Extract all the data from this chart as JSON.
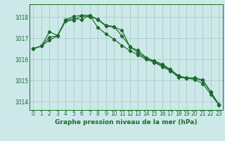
{
  "title": "Graphe pression niveau de la mer (hPa)",
  "background_color": "#cce8e8",
  "grid_color": "#aacccc",
  "line_color": "#1a6b2a",
  "xlim": [
    -0.5,
    23.5
  ],
  "ylim": [
    1013.6,
    1018.6
  ],
  "yticks": [
    1014,
    1015,
    1016,
    1017,
    1018
  ],
  "xticks": [
    0,
    1,
    2,
    3,
    4,
    5,
    6,
    7,
    8,
    9,
    10,
    11,
    12,
    13,
    14,
    15,
    16,
    17,
    18,
    19,
    20,
    21,
    22,
    23
  ],
  "series1": [
    1016.5,
    1016.62,
    1016.9,
    1017.1,
    1017.8,
    1017.85,
    1018.05,
    1018.0,
    1017.9,
    1017.6,
    1017.55,
    1017.1,
    1016.6,
    1016.3,
    1016.05,
    1015.9,
    1015.7,
    1015.5,
    1015.2,
    1015.1,
    1015.1,
    1015.0,
    1014.45,
    1013.85
  ],
  "series2": [
    1016.5,
    1016.62,
    1017.05,
    1017.1,
    1017.82,
    1017.93,
    1017.87,
    1018.08,
    1017.5,
    1017.2,
    1016.95,
    1016.65,
    1016.4,
    1016.2,
    1016.0,
    1015.85,
    1015.65,
    1015.45,
    1015.15,
    1015.1,
    1015.05,
    1014.85,
    1014.35,
    1013.85
  ],
  "series3": [
    1016.5,
    1016.62,
    1017.3,
    1017.12,
    1017.87,
    1018.02,
    1018.08,
    1018.08,
    1017.87,
    1017.57,
    1017.52,
    1017.37,
    1016.57,
    1016.42,
    1016.07,
    1015.92,
    1015.77,
    1015.52,
    1015.22,
    1015.12,
    1015.12,
    1015.02,
    1014.47,
    1013.87
  ],
  "title_fontsize": 6.5,
  "tick_fontsize": 5.5
}
